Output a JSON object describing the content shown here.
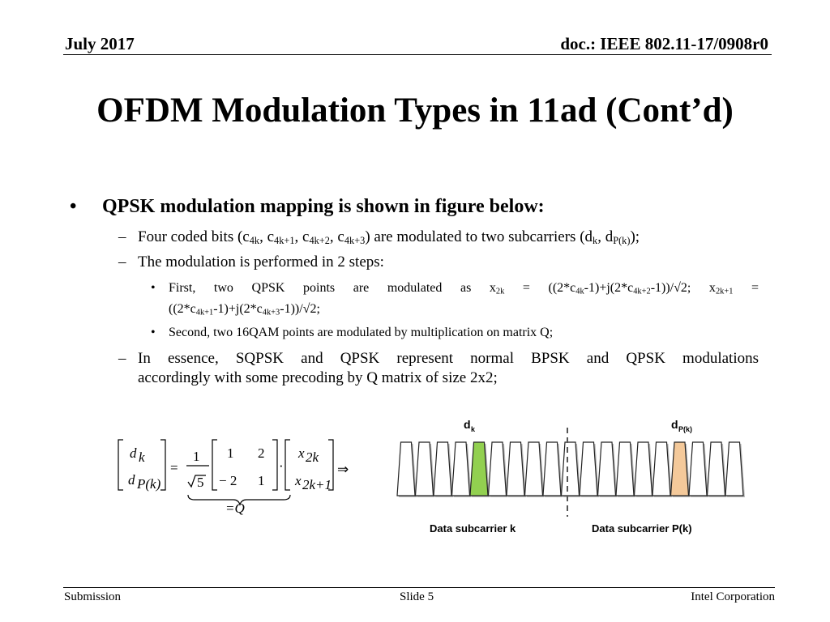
{
  "header": {
    "date": "July 2017",
    "doc": "doc.: IEEE 802.11-17/0908r0"
  },
  "title": "OFDM Modulation Types in 11ad (Cont’d)",
  "body": {
    "bullet1": "QPSK modulation mapping is shown in figure below:",
    "sub1": {
      "pre": "Four coded bits (c",
      "s1": "4k",
      "t1": ", c",
      "s2": "4k+1",
      "t2": ", c",
      "s3": "4k+2",
      "t3": ", c",
      "s4": "4k+3",
      "mid": ") are modulated to two subcarriers (d",
      "s5": "k",
      "t5": ", d",
      "s6": "P(k)",
      "end": ");"
    },
    "sub2": "The modulation is performed in 2 steps:",
    "step1": {
      "a": "First, two QPSK points are modulated as x",
      "a_sub": "2k",
      "b": " = ((2*c",
      "b_sub": "4k",
      "c": "-1)+j(2*c",
      "c_sub": "4k+2",
      "d": "-1))/√2; x",
      "d_sub": "2k+1",
      "e": " =",
      "f": "((2*c",
      "f_sub": "4k+1",
      "g": "-1)+j(2*c",
      "g_sub": "4k+3",
      "h": "-1))/√2;"
    },
    "step2": "Second, two 16QAM points are modulated by multiplication on matrix Q;",
    "sub3_line1": "In essence, SQPSK and QPSK represent normal BPSK and QPSK modulations",
    "sub3_line2": "accordingly with some precoding by Q matrix of size 2x2;"
  },
  "equation": {
    "d": "d",
    "d_k": "k",
    "d_pk": "P(k)",
    "eq": "=",
    "one": "1",
    "sqrt5": "5",
    "m11": "1",
    "m12": "2",
    "m21": "− 2",
    "m22": "1",
    "dot": "·",
    "x": "x",
    "x_2k": "2k",
    "x_2k1": "2k+1",
    "implies": "⇒",
    "q_label": "=Q"
  },
  "figure": {
    "label_dk": "d",
    "label_dk_sub": "k",
    "label_dpk": "d",
    "label_dpk_sub": "P(k)",
    "caption_left": "Data subcarrier k",
    "caption_right": "Data subcarrier P(k)",
    "subcarrier_count": 19,
    "highlight_left_index": 4,
    "highlight_right_index": 15,
    "color_green": "#92d050",
    "color_orange": "#f4c99a"
  },
  "footer": {
    "left": "Submission",
    "center": "Slide 5",
    "right": "Intel Corporation"
  }
}
